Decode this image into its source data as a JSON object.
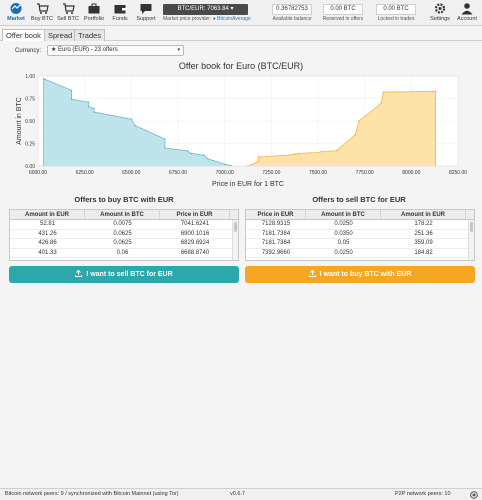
{
  "nav": {
    "items": [
      {
        "label": "Market",
        "icon": "market-icon",
        "active": true
      },
      {
        "label": "Buy BTC",
        "icon": "buy-icon"
      },
      {
        "label": "Sell BTC",
        "icon": "sell-icon"
      },
      {
        "label": "Portfolio",
        "icon": "portfolio-icon"
      },
      {
        "label": "Funds",
        "icon": "funds-icon"
      },
      {
        "label": "Support",
        "icon": "support-icon"
      }
    ],
    "right_items": [
      {
        "label": "Settings",
        "icon": "settings-icon"
      },
      {
        "label": "Account",
        "icon": "account-icon"
      }
    ],
    "price": "BTC/EUR: 7063.84",
    "price_provider": "Market price provider:",
    "provider_name": "BitcoinAverage",
    "balances": [
      {
        "value": "0.36782753",
        "label": "Available balance"
      },
      {
        "value": "0.00 BTC",
        "label": "Reserved in offers"
      },
      {
        "value": "0.00 BTC",
        "label": "Locked in trades"
      }
    ]
  },
  "tabs": [
    "Offer book",
    "Spread",
    "Trades"
  ],
  "currency": {
    "label": "Currency:",
    "value": "★ Euro (EUR) - 23 offers"
  },
  "chart_data": {
    "type": "area",
    "title": "Offer book for Euro (BTC/EUR)",
    "xlabel": "Price in EUR for 1 BTC",
    "ylabel": "Amount in BTC",
    "xlim": [
      6000,
      8250
    ],
    "ylim": [
      0,
      1
    ],
    "x_ticks": [
      "6000.00",
      "6250.00",
      "6500.00",
      "6750.00",
      "7000.00",
      "7250.00",
      "7500.00",
      "7750.00",
      "8000.00",
      "8250.00"
    ],
    "y_ticks": [
      "0.00",
      "0.25",
      "0.50",
      "0.75",
      "1.00"
    ],
    "grid": true,
    "series": [
      {
        "color": "#bfe3ea",
        "stroke": "#6fb7c7",
        "x": [
          6030,
          6030,
          6180,
          6180,
          6270,
          6270,
          6300,
          6300,
          6500,
          6520,
          6680,
          6680,
          6800,
          6820,
          6890,
          6910,
          7000,
          7040
        ],
        "y": [
          0,
          0.97,
          0.84,
          0.74,
          0.71,
          0.66,
          0.64,
          0.6,
          0.52,
          0.45,
          0.3,
          0.2,
          0.17,
          0.14,
          0.12,
          0.08,
          0.02,
          0
        ]
      },
      {
        "color": "#fde3a8",
        "stroke": "#f1b84c",
        "x": [
          7120,
          7150,
          7180,
          7180,
          7350,
          7370,
          7380,
          7400,
          7500,
          7520,
          7600,
          7700,
          7720,
          7840,
          7850,
          8130,
          8130
        ],
        "y": [
          0,
          0.02,
          0.05,
          0.1,
          0.12,
          0.13,
          0.13,
          0.14,
          0.15,
          0.16,
          0.17,
          0.35,
          0.5,
          0.7,
          0.82,
          0.83,
          0
        ]
      }
    ]
  },
  "buy_section": {
    "title": "Offers to buy BTC with EUR",
    "headers": [
      "Amount in EUR",
      "Amount in BTC",
      "Price in EUR"
    ],
    "rows": [
      [
        "52.81",
        "0.0075",
        "7041.6241"
      ],
      [
        "431.26",
        "0.0625",
        "6900.1016"
      ],
      [
        "426.86",
        "0.0625",
        "6829.6924"
      ],
      [
        "401.33",
        "0.06",
        "6688.8740"
      ]
    ],
    "button": "I want to sell BTC for EUR"
  },
  "sell_section": {
    "title": "Offers to sell BTC for EUR",
    "headers": [
      "Price in EUR",
      "Amount in BTC",
      "Amount in EUR"
    ],
    "rows": [
      [
        "7128.9315",
        "0.0250",
        "178.22"
      ],
      [
        "7181.7384",
        "0.0350",
        "251.36"
      ],
      [
        "7181.7384",
        "0.05",
        "359.09"
      ],
      [
        "7392.9660",
        "0.0250",
        "184.82"
      ]
    ],
    "button": "I want to buy BTC with EUR"
  },
  "status": {
    "left": "Bitcoin network peers: 9 / synchronized with Bitcoin Mainnet (using Tor)",
    "version": "v0.6.7",
    "right": "P2P network peers: 10"
  },
  "colors": {
    "sell_button": "#2aa8ac",
    "buy_button": "#f5a623",
    "price_box": "#4a4a4a"
  }
}
